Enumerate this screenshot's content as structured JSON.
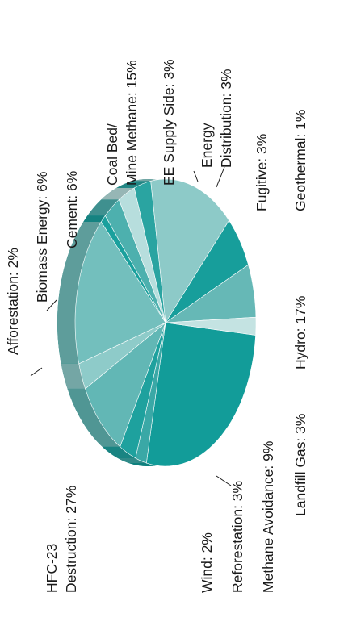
{
  "chart_data": {
    "type": "pie",
    "style": "3d-tilted",
    "text_orientation": "rotated-90-ccw",
    "slices": [
      {
        "label": [
          "HFC-23",
          "Destruction: 27%"
        ],
        "value": 27,
        "color": "#129c99"
      },
      {
        "label": [
          "Wind: 2%"
        ],
        "value": 2,
        "color": "#3aa8a6"
      },
      {
        "label": [
          "Reforestation: 3%"
        ],
        "value": 3,
        "color": "#1ea19e"
      },
      {
        "label": [
          "Methane Avoidance: 9%"
        ],
        "value": 9,
        "color": "#62b7b5"
      },
      {
        "label": [
          "Landfill Gas: 3%"
        ],
        "value": 3,
        "color": "#8ecbc9"
      },
      {
        "label": [
          "Hydro: 17%"
        ],
        "value": 17,
        "color": "#73bfbd"
      },
      {
        "label": [
          "Geothermal: 1%"
        ],
        "value": 1,
        "color": "#1aa09d"
      },
      {
        "label": [
          "Fugitive: 3%"
        ],
        "value": 3,
        "color": "#4db0ae"
      },
      {
        "label": [
          "Energy",
          "Distribution: 3%"
        ],
        "value": 3,
        "color": "#b7dedd"
      },
      {
        "label": [
          "EE Supply Side: 3%"
        ],
        "value": 3,
        "color": "#2aa4a1"
      },
      {
        "label": [
          "Coal Bed/",
          "Mine Methane: 15%"
        ],
        "value": 15,
        "color": "#8dcac8"
      },
      {
        "label": [
          "Cement: 6%"
        ],
        "value": 6,
        "color": "#179e9b"
      },
      {
        "label": [
          "Biomass Energy: 6%"
        ],
        "value": 6,
        "color": "#66b8b6"
      },
      {
        "label": [
          "Afforestation: 2%"
        ],
        "value": 2,
        "color": "#c4e3e2"
      }
    ]
  }
}
